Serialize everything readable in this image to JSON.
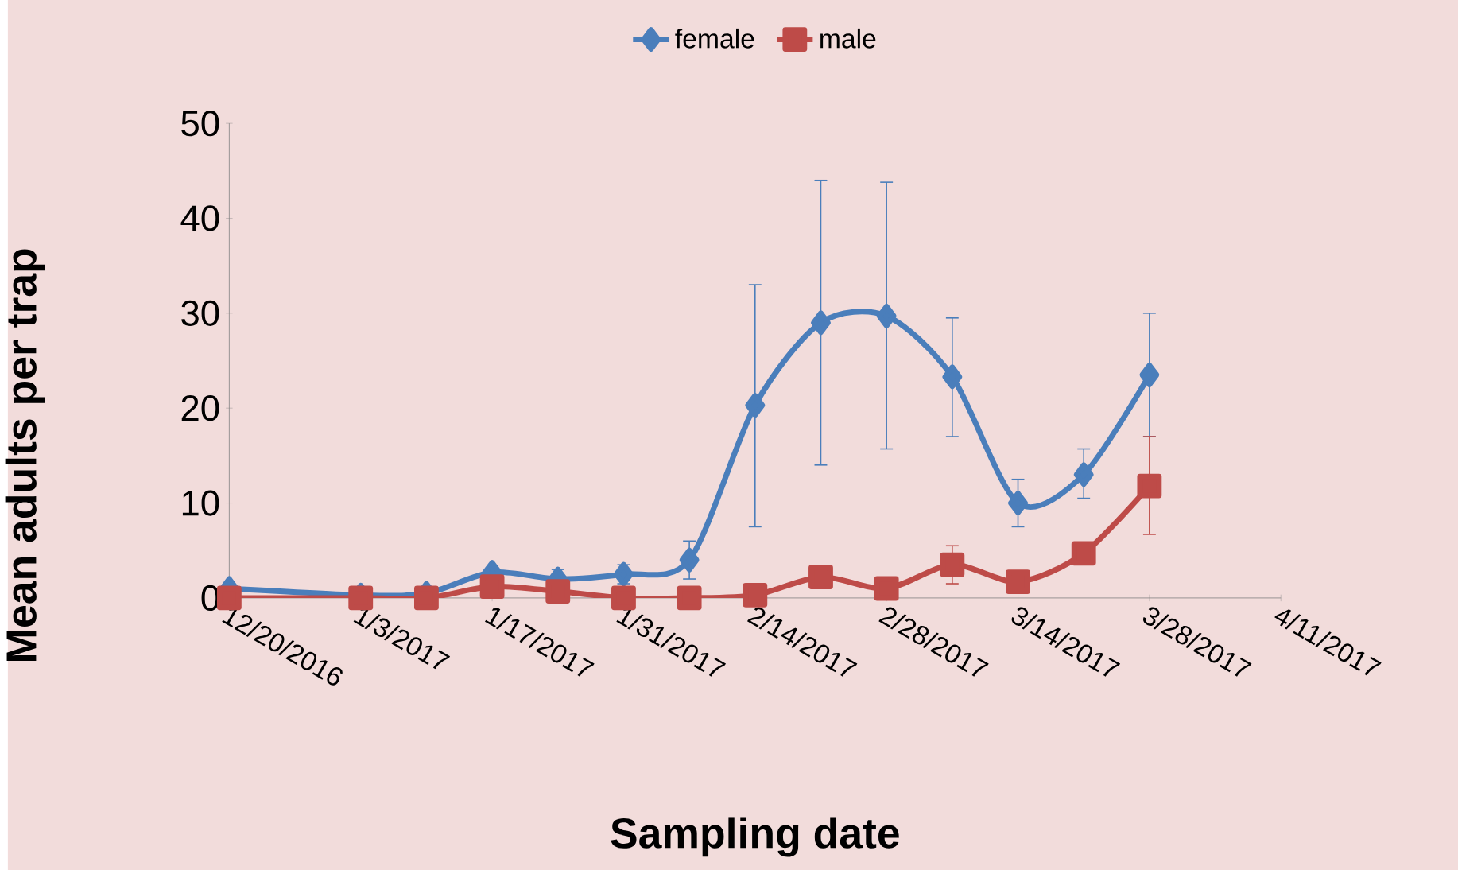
{
  "chart_data": {
    "type": "line",
    "xlabel": "Sampling date",
    "ylabel": "Mean adults per trap",
    "x": [
      "2016-12-20",
      "2017-01-03",
      "2017-01-10",
      "2017-01-17",
      "2017-01-24",
      "2017-01-31",
      "2017-02-07",
      "2017-02-14",
      "2017-02-21",
      "2017-02-28",
      "2017-03-07",
      "2017-03-14",
      "2017-03-21",
      "2017-03-28"
    ],
    "series": [
      {
        "name": "female",
        "color": "#4a7ebb",
        "marker": "diamond",
        "values": [
          1,
          0.3,
          0.5,
          2.7,
          2,
          2.5,
          4,
          20.3,
          29,
          29.7,
          23.3,
          10,
          13,
          23.5
        ],
        "errors": [
          null,
          null,
          null,
          null,
          1,
          1,
          2,
          [
            7.5,
            33
          ],
          [
            14,
            44
          ],
          [
            15.7,
            43.8
          ],
          [
            17,
            29.5
          ],
          [
            7.5,
            12.5
          ],
          [
            10.5,
            15.7
          ],
          [
            17,
            30
          ]
        ]
      },
      {
        "name": "male",
        "color": "#be4b48",
        "marker": "square",
        "values": [
          0,
          0,
          0,
          1.2,
          0.7,
          0,
          0,
          0.3,
          2.2,
          1,
          3.5,
          1.7,
          4.7,
          11.8
        ],
        "errors": [
          null,
          null,
          null,
          null,
          null,
          null,
          null,
          null,
          null,
          null,
          [
            1.5,
            5.5
          ],
          null,
          null,
          [
            6.7,
            17
          ]
        ]
      }
    ],
    "xlim": [
      "2016-12-20",
      "2017-04-11"
    ],
    "xticks": [
      {
        "value": "2016-12-20",
        "label": "12/20/2016"
      },
      {
        "value": "2017-01-03",
        "label": "1/3/2017"
      },
      {
        "value": "2017-01-17",
        "label": "1/17/2017"
      },
      {
        "value": "2017-01-31",
        "label": "1/31/2017"
      },
      {
        "value": "2017-02-14",
        "label": "2/14/2017"
      },
      {
        "value": "2017-02-28",
        "label": "2/28/2017"
      },
      {
        "value": "2017-03-14",
        "label": "3/14/2017"
      },
      {
        "value": "2017-03-28",
        "label": "3/28/2017"
      },
      {
        "value": "2017-04-11",
        "label": "4/11/2017"
      }
    ],
    "ylim": [
      0,
      50
    ],
    "yticks": [
      0,
      10,
      20,
      30,
      40,
      50
    ],
    "grid": false,
    "legend": "top",
    "line_style": "solid"
  }
}
